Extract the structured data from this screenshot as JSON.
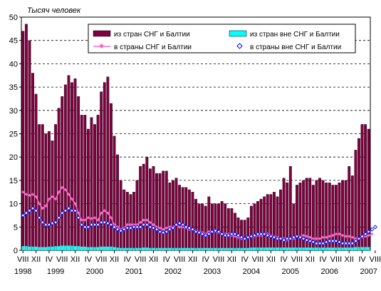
{
  "chart_data": {
    "type": "bar",
    "ylabel": "Тысяч человек",
    "ylim": [
      0,
      50
    ],
    "yticks": [
      0,
      5,
      10,
      15,
      20,
      25,
      30,
      35,
      40,
      45,
      50
    ],
    "grid": true,
    "legend_position": "top",
    "month_labels": [
      "VIII",
      "XII",
      "IV",
      "VIII",
      "XII",
      "IV",
      "VIII",
      "XII",
      "IV",
      "VIII",
      "XII",
      "IV",
      "VIII",
      "XII",
      "IV",
      "VIII",
      "XII",
      "IV",
      "VIII",
      "XII",
      "IV",
      "VIII",
      "XII",
      "IV",
      "VIII",
      "XII",
      "IV",
      "VIII",
      "XII",
      "IV",
      "VIII",
      "XII"
    ],
    "month_label_index": [
      0,
      4,
      8,
      12,
      16,
      20,
      24,
      28,
      32,
      36,
      40,
      44,
      48,
      52,
      56,
      60,
      64,
      68,
      72,
      76,
      80,
      84,
      88,
      92,
      96,
      100,
      104,
      108,
      112,
      116,
      120,
      124
    ],
    "year_labels": [
      {
        "label": "1998",
        "index": 0
      },
      {
        "label": "1999",
        "index": 10
      },
      {
        "label": "2000",
        "index": 22
      },
      {
        "label": "2001",
        "index": 34
      },
      {
        "label": "2002",
        "index": 46
      },
      {
        "label": "2003",
        "index": 58
      },
      {
        "label": "2004",
        "index": 70
      },
      {
        "label": "2005",
        "index": 82
      },
      {
        "label": "2006",
        "index": 94
      },
      {
        "label": "2007",
        "index": 106
      }
    ],
    "series": [
      {
        "name": "из стран СНГ и Балтии",
        "kind": "bar",
        "color": "#800040",
        "values": [
          47,
          48.5,
          45,
          38,
          33.5,
          27,
          27,
          25,
          25.5,
          23.5,
          27,
          30.5,
          33,
          35.5,
          37.5,
          36,
          36.8,
          33,
          29,
          29,
          26,
          28.5,
          27,
          29,
          34,
          36,
          37.2,
          31.5,
          24.5,
          20.5,
          15,
          13,
          12.5,
          12,
          12.5,
          15,
          18,
          18.5,
          20,
          17.5,
          18,
          16.5,
          16.5,
          17,
          17,
          14.5,
          15,
          15.5,
          14,
          13.5,
          13.5,
          13,
          12.5,
          11,
          10,
          10,
          9.5,
          11.5,
          10,
          10,
          10,
          10.5,
          10,
          9,
          9,
          8,
          7,
          6.5,
          6.5,
          7,
          9.5,
          10,
          10.5,
          11,
          11.5,
          12,
          12,
          12.5,
          11.5,
          13,
          15.5,
          14.5,
          18,
          10,
          14,
          14.5,
          15,
          15.5,
          15.5,
          14,
          15,
          15.5,
          15,
          14.5,
          14.5,
          14,
          14,
          14.5,
          15,
          15,
          18,
          16,
          21.5,
          24,
          27,
          27,
          26
        ]
      },
      {
        "name": "из стран вне СНГ и Балтии",
        "kind": "bar",
        "color": "#00ffff",
        "values": [
          0.9,
          0.9,
          0.8,
          0.8,
          0.8,
          0.7,
          0.7,
          0.7,
          0.8,
          0.8,
          0.9,
          0.9,
          1,
          1,
          1,
          1,
          0.9,
          0.9,
          0.8,
          0.8,
          0.7,
          0.7,
          0.7,
          0.7,
          0.8,
          0.8,
          0.8,
          0.8,
          0.7,
          0.6,
          0.5,
          0.5,
          0.5,
          0.5,
          0.5,
          0.5,
          0.5,
          0.6,
          0.6,
          0.5,
          0.5,
          0.5,
          0.5,
          0.5,
          0.5,
          0.5,
          0.5,
          0.5,
          0.5,
          0.5,
          0.5,
          0.5,
          0.5,
          0.5,
          0.5,
          0.5,
          0.5,
          0.5,
          0.5,
          0.5,
          0.5,
          0.5,
          0.5,
          0.5,
          0.5,
          0.5,
          0.5,
          0.5,
          0.5,
          0.5,
          0.6,
          0.6,
          0.6,
          0.6,
          0.6,
          0.6,
          0.6,
          0.6,
          0.6,
          0.6,
          0.6,
          0.6,
          0.6,
          0.6,
          0.6,
          0.6,
          0.6,
          0.6,
          0.6,
          0.6,
          0.6,
          0.6,
          0.6,
          0.6,
          0.6,
          0.6,
          0.6,
          0.6,
          0.6,
          0.6,
          0.6,
          0.6,
          0.7,
          0.7,
          0.7,
          0.7,
          0.7
        ]
      },
      {
        "name": "в страны СНГ и Балтии",
        "kind": "line",
        "color": "#ff66cc",
        "values": [
          12.5,
          12,
          11.8,
          12,
          11.5,
          10,
          9,
          9.5,
          11,
          11.5,
          11,
          12.5,
          13.5,
          13,
          12,
          11,
          10,
          8,
          6.5,
          6.5,
          7,
          6.8,
          7,
          6.5,
          8,
          8.5,
          8,
          7,
          5.5,
          5,
          4.5,
          4.8,
          5.5,
          5.5,
          5.5,
          5.5,
          6,
          6.5,
          6.5,
          6,
          5.5,
          5,
          4.8,
          4.5,
          4.8,
          5,
          5,
          5.5,
          5,
          5,
          4.8,
          4.5,
          4.5,
          4.2,
          4,
          3.8,
          3.5,
          4,
          4,
          4,
          3.8,
          3.5,
          3.5,
          3.5,
          3.2,
          3,
          2.8,
          2.5,
          2.5,
          2.8,
          3,
          3,
          3.2,
          3.2,
          3.5,
          3.5,
          3.2,
          3,
          2.8,
          2.5,
          2.5,
          2.2,
          2.5,
          2.5,
          3,
          3,
          3.2,
          3,
          2.8,
          2.5,
          2.5,
          2.5,
          2.8,
          2.8,
          3,
          3.2,
          3.5,
          3.5,
          3.2,
          3,
          3,
          2.8,
          2.5,
          2.5,
          2.8,
          3,
          3.2,
          3.5
        ]
      },
      {
        "name": "в страны вне СНГ и Балтии",
        "kind": "line",
        "color": "#0000ff",
        "values": [
          7.5,
          8,
          8.5,
          9,
          8.5,
          7,
          6,
          5.5,
          5.5,
          5.8,
          6,
          7,
          8,
          8.5,
          9,
          8.5,
          8.5,
          7,
          5.5,
          5,
          5,
          5.5,
          5.5,
          5.5,
          6,
          6,
          5.8,
          5.5,
          5,
          4.5,
          4.2,
          4.5,
          4.8,
          4.8,
          5,
          5,
          5,
          5.5,
          5.5,
          5,
          4.8,
          4.5,
          4,
          3.8,
          4,
          4.5,
          4.8,
          5.5,
          5.8,
          5.5,
          5,
          4.8,
          4.5,
          4,
          3.8,
          3.5,
          3.2,
          3.5,
          4,
          4.2,
          4,
          3.5,
          3.2,
          3.2,
          3.5,
          3.5,
          3.2,
          2.8,
          2.5,
          2.8,
          3,
          3.2,
          3.5,
          3.5,
          3.5,
          3.2,
          3,
          2.8,
          2.5,
          2.5,
          2.2,
          2.5,
          2.5,
          2.8,
          3,
          2.8,
          2.5,
          2.2,
          2,
          1.8,
          1.5,
          1.5,
          1.5,
          1.8,
          2,
          2,
          2,
          1.8,
          1.5,
          1.5,
          1.5,
          1.5,
          2,
          2.5,
          3,
          3.5,
          4,
          4.5,
          5
        ]
      }
    ]
  }
}
